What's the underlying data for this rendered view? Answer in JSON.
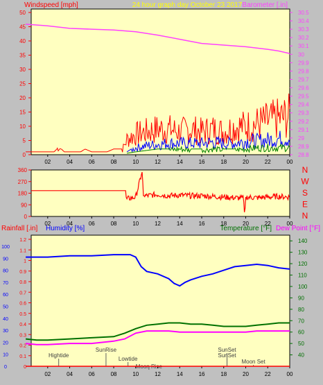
{
  "header": {
    "left_label": "Windspeed [mph]",
    "title": "24 hour graph day   October 23 2017",
    "right_label": "Barometer [.in]"
  },
  "colors": {
    "plot_bg": "#ffffc0",
    "frame_bg": "#c0c0c0",
    "wind_red": "#ff0000",
    "wind_blue": "#0000ff",
    "wind_green": "#008000",
    "barometer": "#ff40ff",
    "direction": "#ff0000",
    "humidity": "#0000ff",
    "temperature": "#007000",
    "dewpoint": "#ff00ff",
    "rainfall": "#ff0000",
    "title_yellow": "#ffff00"
  },
  "chart_data": [
    {
      "type": "line",
      "x_ticks": [
        "02",
        "04",
        "06",
        "08",
        "10",
        "12",
        "14",
        "16",
        "18",
        "20",
        "22",
        "00"
      ],
      "left_axis": {
        "label": "Windspeed [mph]",
        "ticks": [
          "0",
          "5",
          "10",
          "15",
          "20",
          "25",
          "30",
          "35",
          "40",
          "45",
          "50"
        ],
        "range": [
          0,
          50
        ]
      },
      "right_axis": {
        "label": "Barometer [.in]",
        "ticks": [
          "28.8",
          "28.9",
          "29",
          "29.1",
          "29.2",
          "29.3",
          "29.4",
          "29.5",
          "29.6",
          "29.7",
          "29.8",
          "29.9",
          "30",
          "30.1",
          "30.2",
          "30.3",
          "30.4",
          "30.5"
        ],
        "range": [
          28.8,
          30.5
        ]
      },
      "series": [
        {
          "kind": "wind_gust",
          "color": "wind_red",
          "x": [
            0,
            1.5,
            2.6,
            3.0,
            3.5,
            5.0,
            5.4,
            6.0,
            7.4,
            8.0,
            8.8,
            9.2,
            10,
            11,
            12,
            13,
            14,
            15,
            16,
            17,
            18,
            19,
            20,
            21,
            22,
            23,
            24
          ],
          "y": [
            1,
            1,
            1,
            3,
            1,
            1,
            2,
            1,
            1,
            2,
            2,
            6,
            8,
            9,
            10,
            10,
            9,
            10,
            9,
            10,
            9,
            11,
            11,
            12,
            13,
            14,
            15
          ]
        },
        {
          "kind": "wind_avg",
          "color": "wind_blue",
          "x": [
            9.2,
            10,
            11,
            12,
            13,
            14,
            15,
            16,
            17,
            18,
            19,
            20,
            21,
            22,
            23,
            24
          ],
          "y": [
            1,
            3,
            4,
            4.5,
            5,
            5,
            5,
            5,
            5.5,
            5,
            5,
            6,
            6,
            6.5,
            7,
            7
          ]
        },
        {
          "kind": "wind_low",
          "color": "wind_green",
          "x": [
            9.2,
            10,
            11,
            12,
            13,
            14,
            15,
            16,
            17,
            18,
            19,
            20,
            21,
            22,
            23,
            24
          ],
          "y": [
            0.5,
            1,
            1.5,
            2,
            2,
            2.5,
            2,
            2,
            2.5,
            2,
            2,
            2.5,
            3,
            3,
            3,
            3
          ]
        },
        {
          "kind": "barometer",
          "color": "barometer",
          "x": [
            0,
            2,
            4,
            6,
            8,
            10,
            12,
            14,
            16,
            18,
            20,
            22,
            23,
            24
          ],
          "y": [
            30.36,
            30.34,
            30.31,
            30.3,
            30.29,
            30.27,
            30.23,
            30.18,
            30.13,
            30.11,
            30.09,
            30.06,
            30.04,
            30.01
          ]
        }
      ]
    },
    {
      "type": "line",
      "x_ticks": [
        "02",
        "04",
        "06",
        "08",
        "10",
        "12",
        "14",
        "16",
        "18",
        "20",
        "22",
        "00"
      ],
      "left_axis": {
        "ticks": [
          "0",
          "90",
          "180",
          "270",
          "360"
        ],
        "range": [
          0,
          360
        ]
      },
      "right_axis": {
        "ticks": [
          "N",
          "W",
          "S",
          "E",
          "N"
        ]
      },
      "series": [
        {
          "kind": "wind_direction",
          "color": "direction",
          "x": [
            0,
            9.1,
            9.15,
            10,
            10.6,
            10.7,
            11,
            12,
            13,
            14,
            15,
            16,
            17,
            18,
            19,
            19.8,
            19.9,
            20,
            21,
            22,
            23,
            24
          ],
          "y": [
            200,
            200,
            135,
            150,
            350,
            160,
            160,
            170,
            160,
            165,
            160,
            160,
            155,
            150,
            145,
            140,
            5,
            150,
            145,
            150,
            155,
            150
          ]
        }
      ]
    },
    {
      "type": "line",
      "x_ticks": [
        "02",
        "04",
        "06",
        "08",
        "10",
        "12",
        "14",
        "16",
        "18",
        "20",
        "22",
        "00"
      ],
      "labels": {
        "rainfall": "Rainfall [.in]",
        "humidity": "Humidity [%]",
        "temperature": "Temperature [°F]",
        "dewpoint": "Dew Point [°F]"
      },
      "left_axis_rain": {
        "ticks": [
          "0",
          "0.1",
          "0.2",
          "0.3",
          "0.4",
          "0.5",
          "0.6",
          "0.7",
          "0.8",
          "0.9",
          "1",
          "1.1",
          "1.2"
        ],
        "range": [
          0,
          1.2
        ]
      },
      "left_axis_humidity": {
        "ticks": [
          "0",
          "10",
          "20",
          "30",
          "40",
          "50",
          "60",
          "70",
          "80",
          "90",
          "100"
        ],
        "range": [
          0,
          100
        ]
      },
      "right_axis": {
        "ticks": [
          "40",
          "50",
          "60",
          "70",
          "80",
          "90",
          "100",
          "110",
          "120",
          "130",
          "140"
        ],
        "range": [
          30,
          145
        ]
      },
      "annotations": [
        {
          "text": "Hightide",
          "x": 3.0
        },
        {
          "text": "SunRise",
          "x": 7.3
        },
        {
          "text": "Lowtide",
          "x": 9.3
        },
        {
          "text": "Moon Rise",
          "x": 11.2
        },
        {
          "text": "SunSet",
          "x": 18.3
        },
        {
          "text": "SunSet",
          "x": 18.3
        },
        {
          "text": "Moon Set",
          "x": 20.7
        }
      ],
      "series": [
        {
          "kind": "humidity",
          "color": "humidity",
          "x": [
            0,
            2,
            4,
            6,
            8,
            9,
            9.5,
            10,
            10.5,
            11,
            12,
            13,
            13.5,
            14,
            14.5,
            15,
            16,
            17,
            18,
            19,
            20,
            21,
            22,
            23,
            24
          ],
          "y": [
            91,
            91,
            92,
            92,
            93,
            93,
            93,
            91,
            83,
            79,
            77,
            73,
            69,
            67,
            70,
            72,
            75,
            77,
            80,
            83,
            84,
            85,
            84,
            82,
            81
          ]
        },
        {
          "kind": "temperature",
          "color": "temperature",
          "x": [
            0,
            1,
            2,
            4,
            6,
            8,
            9,
            10,
            11,
            12,
            13,
            14,
            15,
            16,
            17,
            18,
            19,
            20,
            21,
            22,
            23,
            24
          ],
          "y": [
            54,
            53,
            53,
            54,
            55,
            56,
            59,
            63,
            66,
            67,
            68,
            68,
            67,
            67,
            66,
            65,
            65,
            65,
            66,
            67,
            68,
            68
          ]
        },
        {
          "kind": "dewpoint",
          "color": "dewpoint",
          "x": [
            0,
            1,
            2,
            4,
            6,
            8,
            9,
            10,
            11,
            12,
            13,
            14,
            15,
            16,
            17,
            18,
            19,
            20,
            21,
            22,
            23,
            24
          ],
          "y": [
            50,
            49,
            49,
            50,
            50,
            52,
            54,
            59,
            61,
            61,
            61,
            60,
            60,
            60,
            60,
            60,
            60,
            60,
            61,
            61,
            61,
            61
          ]
        },
        {
          "kind": "rainfall",
          "color": "rainfall",
          "x": [
            0,
            24
          ],
          "y": [
            0,
            0
          ]
        }
      ]
    }
  ]
}
